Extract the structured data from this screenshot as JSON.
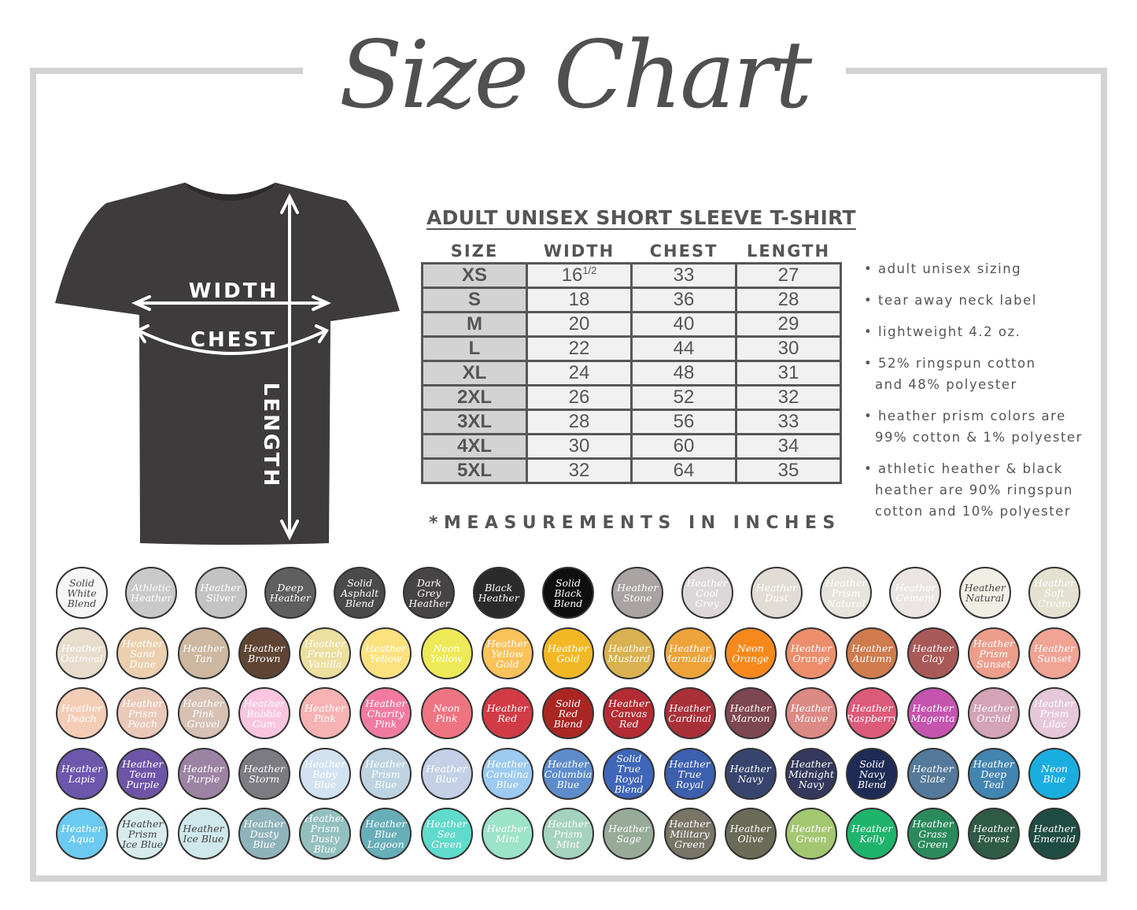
{
  "title": "Size Chart",
  "shirt": {
    "color": "#3d3b3b",
    "labels": {
      "width": "WIDTH",
      "chest": "CHEST",
      "length": "LENGTH"
    }
  },
  "table": {
    "title": "ADULT UNISEX SHORT SLEEVE T-SHIRT",
    "headers": [
      "SIZE",
      "WIDTH",
      "CHEST",
      "LENGTH"
    ],
    "rows": [
      {
        "size": "XS",
        "width": "16",
        "width_fraction": "1/2",
        "chest": "33",
        "length": "27"
      },
      {
        "size": "S",
        "width": "18",
        "chest": "36",
        "length": "28"
      },
      {
        "size": "M",
        "width": "20",
        "chest": "40",
        "length": "29"
      },
      {
        "size": "L",
        "width": "22",
        "chest": "44",
        "length": "30"
      },
      {
        "size": "XL",
        "width": "24",
        "chest": "48",
        "length": "31"
      },
      {
        "size": "2XL",
        "width": "26",
        "chest": "52",
        "length": "32"
      },
      {
        "size": "3XL",
        "width": "28",
        "chest": "56",
        "length": "33"
      },
      {
        "size": "4XL",
        "width": "30",
        "chest": "60",
        "length": "34"
      },
      {
        "size": "5XL",
        "width": "32",
        "chest": "64",
        "length": "35"
      }
    ],
    "note": "*MEASUREMENTS IN INCHES"
  },
  "bullets": [
    "• adult unisex sizing",
    "• tear away neck label",
    "• lightweight 4.2 oz.",
    "• 52% ringspun cotton\nand 48% polyester",
    "• heather prism colors are\n99% cotton & 1% polyester",
    "• athletic heather & black\nheather are 90% ringspun\ncotton and 10% polyester"
  ],
  "swatch_rows": [
    [
      {
        "label": "Solid\nWhite\nBlend",
        "color": "#f6f6f7",
        "dark": true
      },
      {
        "label": "Athletic\nHeather",
        "color": "#c9c9c9"
      },
      {
        "label": "Heather\nSilver",
        "color": "#c3c3c3"
      },
      {
        "label": "Deep\nHeather",
        "color": "#5f5f5f"
      },
      {
        "label": "Solid\nAsphalt\nBlend",
        "color": "#4a4a4a"
      },
      {
        "label": "Dark\nGrey\nHeather",
        "color": "#464444"
      },
      {
        "label": "Black\nHeather",
        "color": "#2b2b2b"
      },
      {
        "label": "Solid\nBlack\nBlend",
        "color": "#0f0f0f"
      },
      {
        "label": "Heather\nStone",
        "color": "#a9a4a3"
      },
      {
        "label": "Heather\nCool Grey",
        "color": "#ddd7d9"
      },
      {
        "label": "Heather\nDust",
        "color": "#e2dcd7"
      },
      {
        "label": "Heather\nPrism\nNatural",
        "color": "#e6e4dc"
      },
      {
        "label": "Heather\nCement",
        "color": "#ebe6e3"
      },
      {
        "label": "Heather\nNatural",
        "color": "#f1eee5",
        "dark": true
      },
      {
        "label": "Heather\nSoft Cream",
        "color": "#e4e1d0"
      }
    ],
    [
      {
        "label": "Heather\nOatmeal",
        "color": "#e8dccd"
      },
      {
        "label": "Heather\nSand\nDune",
        "color": "#ebcfae"
      },
      {
        "label": "Heather\nTan",
        "color": "#cdb7a0"
      },
      {
        "label": "Heather\nBrown",
        "color": "#5f4434"
      },
      {
        "label": "Heather\nFrench\nVanilla",
        "color": "#ecdf9f"
      },
      {
        "label": "Heather\nYellow",
        "color": "#fbe27f"
      },
      {
        "label": "Neon\nYellow",
        "color": "#eeea57"
      },
      {
        "label": "Heather\nYellow\nGold",
        "color": "#f9c25a"
      },
      {
        "label": "Heather\nGold",
        "color": "#f2b824"
      },
      {
        "label": "Heather\nMustard",
        "color": "#d9b150"
      },
      {
        "label": "Heather\nMarmalade",
        "color": "#eea33a"
      },
      {
        "label": "Neon\nOrange",
        "color": "#f7891c"
      },
      {
        "label": "Heather\nOrange",
        "color": "#ec8e6c"
      },
      {
        "label": "Heather\nAutumn",
        "color": "#cf7b4d"
      },
      {
        "label": "Heather\nClay",
        "color": "#a85a59"
      },
      {
        "label": "Heather\nPrism\nSunset",
        "color": "#ec9e8b"
      },
      {
        "label": "Heather\nSunset",
        "color": "#f1a394"
      }
    ],
    [
      {
        "label": "Heather\nPeach",
        "color": "#f4cdb6"
      },
      {
        "label": "Heather\nPrism\nPeach",
        "color": "#ebc9b9"
      },
      {
        "label": "Heather\nPink\nGravel",
        "color": "#d7c0b4"
      },
      {
        "label": "Heather\nBubble\nGum",
        "color": "#f9c5df"
      },
      {
        "label": "Heather\nPink",
        "color": "#f7b3b3"
      },
      {
        "label": "Heather\nCharity\nPink",
        "color": "#f17ba0"
      },
      {
        "label": "Neon\nPink",
        "color": "#ef7482"
      },
      {
        "label": "Heather\nRed",
        "color": "#d23b45"
      },
      {
        "label": "Solid\nRed\nBlend",
        "color": "#a92623"
      },
      {
        "label": "Heather\nCanvas\nRed",
        "color": "#b42b33"
      },
      {
        "label": "Heather\nCardinal",
        "color": "#a93039"
      },
      {
        "label": "Heather\nMaroon",
        "color": "#7e4651"
      },
      {
        "label": "Heather\nMauve",
        "color": "#dd8985"
      },
      {
        "label": "Heather\nRaspberry",
        "color": "#dc5a7a"
      },
      {
        "label": "Heather\nMagenta",
        "color": "#c454ae"
      },
      {
        "label": "Heather\nOrchid",
        "color": "#d3a3b6"
      },
      {
        "label": "Heather\nPrism\nLilac",
        "color": "#e6c8da"
      }
    ],
    [
      {
        "label": "Heather\nLapis",
        "color": "#6c57ad"
      },
      {
        "label": "Heather\nTeam\nPurple",
        "color": "#6e54a6"
      },
      {
        "label": "Heather\nPurple",
        "color": "#9c83a3"
      },
      {
        "label": "Heather\nStorm",
        "color": "#7d7b82"
      },
      {
        "label": "Heather\nBaby\nBlue",
        "color": "#d2e2f1"
      },
      {
        "label": "Heather\nPrism\nBlue",
        "color": "#bdd3e1"
      },
      {
        "label": "Heather\nBlue",
        "color": "#c3d0e6"
      },
      {
        "label": "Heather\nCarolina\nBlue",
        "color": "#9ccaf0"
      },
      {
        "label": "Heather\nColumbia\nBlue",
        "color": "#5e8ccb"
      },
      {
        "label": "Solid\nTrue Royal\nBlend",
        "color": "#3f66b8"
      },
      {
        "label": "Heather\nTrue\nRoyal",
        "color": "#3c5fae"
      },
      {
        "label": "Heather\nNavy",
        "color": "#37456e"
      },
      {
        "label": "Heather\nMidnight\nNavy",
        "color": "#35385c"
      },
      {
        "label": "Solid\nNavy\nBlend",
        "color": "#1e2b55"
      },
      {
        "label": "Heather\nSlate",
        "color": "#54799a"
      },
      {
        "label": "Heather\nDeep Teal",
        "color": "#4385b1"
      },
      {
        "label": "Neon\nBlue",
        "color": "#1aaee0"
      }
    ],
    [
      {
        "label": "Heather\nAqua",
        "color": "#6ccaf0"
      },
      {
        "label": "Heather\nPrism\nIce Blue",
        "color": "#d8eced",
        "dark": true
      },
      {
        "label": "Heather\nIce Blue",
        "color": "#cfe8ec",
        "dark": true
      },
      {
        "label": "Heather\nDusty\nBlue",
        "color": "#8fb3ba"
      },
      {
        "label": "Heather\nPrism\nDusty Blue",
        "color": "#93c0bf"
      },
      {
        "label": "Heather\nBlue\nLagoon",
        "color": "#68aeb9"
      },
      {
        "label": "Heather\nSea Green",
        "color": "#5fdacb"
      },
      {
        "label": "Heather\nMint",
        "color": "#9be3c9"
      },
      {
        "label": "Heather\nPrism\nMint",
        "color": "#a6d3bf"
      },
      {
        "label": "Heather\nSage",
        "color": "#97ab98"
      },
      {
        "label": "Heather\nMilitary\nGreen",
        "color": "#787466"
      },
      {
        "label": "Heather\nOlive",
        "color": "#6a6b57"
      },
      {
        "label": "Heather\nGreen",
        "color": "#a3c770"
      },
      {
        "label": "Heather\nKelly",
        "color": "#1fb46c"
      },
      {
        "label": "Heather\nGrass\nGreen",
        "color": "#2b8a5c"
      },
      {
        "label": "Heather\nForest",
        "color": "#2f5a46"
      },
      {
        "label": "Heather\nEmerald",
        "color": "#1f4c42"
      }
    ]
  ]
}
